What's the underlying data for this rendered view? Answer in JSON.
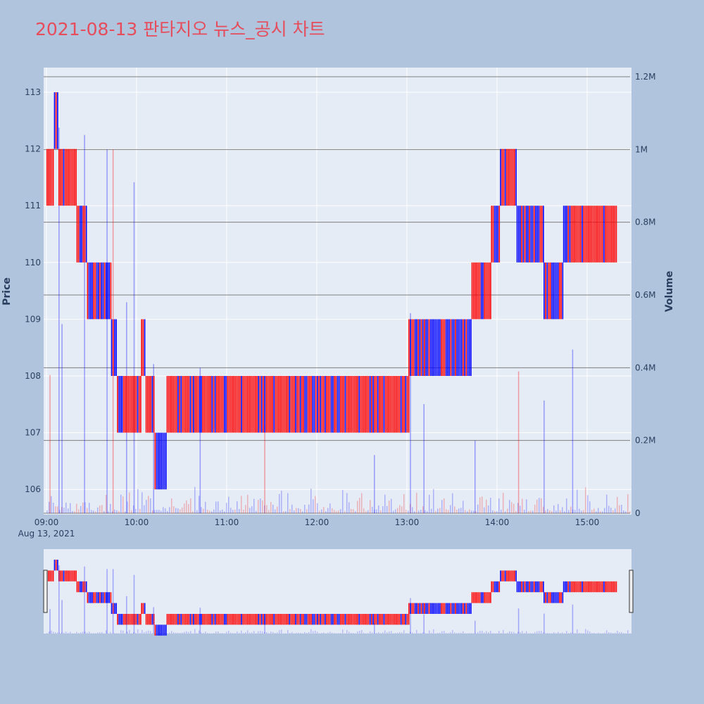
{
  "title": "2021-08-13 판타지오 뉴스_공시 차트",
  "colors": {
    "up": "#ff0000",
    "down": "#0000ff",
    "title": "#e74c5b",
    "plot_bg": "#e5ecf6",
    "page_bg": "#b0c4de",
    "vol_grid": "#7f7f7f"
  },
  "chart_data": {
    "type": "candlestick+volume",
    "title": "2021-08-13 판타지오 뉴스_공시 차트",
    "ylabel": "Price",
    "y2label": "Volume",
    "xaxis": {
      "ticks": [
        "09:00",
        "10:00",
        "11:00",
        "12:00",
        "13:00",
        "14:00",
        "15:00"
      ],
      "date_label": "Aug 13, 2021",
      "range": [
        "09:00",
        "15:30"
      ]
    },
    "yaxis": {
      "ticks": [
        "106",
        "107",
        "108",
        "109",
        "110",
        "111",
        "112",
        "113"
      ],
      "range": [
        105.6,
        113.4
      ]
    },
    "y2axis": {
      "ticks": [
        "0",
        "0.2M",
        "0.4M",
        "0.6M",
        "0.8M",
        "1M",
        "1.2M"
      ],
      "range": [
        0,
        1210000
      ]
    },
    "price_segments": [
      {
        "from": "09:00",
        "to": "09:05",
        "low": 111,
        "high": 112,
        "dominant": "up"
      },
      {
        "from": "09:05",
        "to": "09:08",
        "low": 112,
        "high": 113,
        "dominant": "down"
      },
      {
        "from": "09:08",
        "to": "09:20",
        "low": 111,
        "high": 112,
        "dominant": "up"
      },
      {
        "from": "09:20",
        "to": "09:27",
        "low": 110,
        "high": 111,
        "dominant": "up"
      },
      {
        "from": "09:27",
        "to": "09:43",
        "low": 109,
        "high": 110,
        "dominant": "down"
      },
      {
        "from": "09:43",
        "to": "09:47",
        "low": 108,
        "high": 109,
        "dominant": "down"
      },
      {
        "from": "09:47",
        "to": "09:50",
        "low": 107,
        "high": 108,
        "dominant": "down"
      },
      {
        "from": "09:50",
        "to": "10:03",
        "low": 107,
        "high": 108,
        "dominant": "up"
      },
      {
        "from": "10:03",
        "to": "10:06",
        "low": 108,
        "high": 109,
        "dominant": "up"
      },
      {
        "from": "10:06",
        "to": "10:12",
        "low": 107,
        "high": 108,
        "dominant": "up"
      },
      {
        "from": "10:12",
        "to": "10:20",
        "low": 106,
        "high": 107,
        "dominant": "down"
      },
      {
        "from": "10:20",
        "to": "13:01",
        "low": 107,
        "high": 108,
        "dominant": "up"
      },
      {
        "from": "13:01",
        "to": "13:43",
        "low": 108,
        "high": 109,
        "dominant": "down"
      },
      {
        "from": "13:43",
        "to": "13:56",
        "low": 109,
        "high": 110,
        "dominant": "up"
      },
      {
        "from": "13:56",
        "to": "14:02",
        "low": 110,
        "high": 111,
        "dominant": "up"
      },
      {
        "from": "14:02",
        "to": "14:13",
        "low": 111,
        "high": 112,
        "dominant": "up"
      },
      {
        "from": "14:13",
        "to": "14:31",
        "low": 110,
        "high": 111,
        "dominant": "down"
      },
      {
        "from": "14:31",
        "to": "14:44",
        "low": 109,
        "high": 110,
        "dominant": "down"
      },
      {
        "from": "14:44",
        "to": "15:20",
        "low": 110,
        "high": 111,
        "dominant": "up"
      }
    ],
    "volume_spikes": [
      {
        "time": "09:02",
        "value": 380000
      },
      {
        "time": "09:08",
        "value": 1060000
      },
      {
        "time": "09:10",
        "value": 520000
      },
      {
        "time": "09:25",
        "value": 1040000
      },
      {
        "time": "09:40",
        "value": 1000000
      },
      {
        "time": "09:44",
        "value": 1000000
      },
      {
        "time": "09:53",
        "value": 580000
      },
      {
        "time": "09:58",
        "value": 910000
      },
      {
        "time": "10:11",
        "value": 410000
      },
      {
        "time": "10:42",
        "value": 400000
      },
      {
        "time": "11:25",
        "value": 240000
      },
      {
        "time": "12:38",
        "value": 160000
      },
      {
        "time": "13:02",
        "value": 550000
      },
      {
        "time": "13:11",
        "value": 300000
      },
      {
        "time": "13:45",
        "value": 200000
      },
      {
        "time": "14:14",
        "value": 390000
      },
      {
        "time": "14:31",
        "value": 310000
      },
      {
        "time": "14:50",
        "value": 450000
      }
    ],
    "grid": true,
    "range_slider": true
  }
}
